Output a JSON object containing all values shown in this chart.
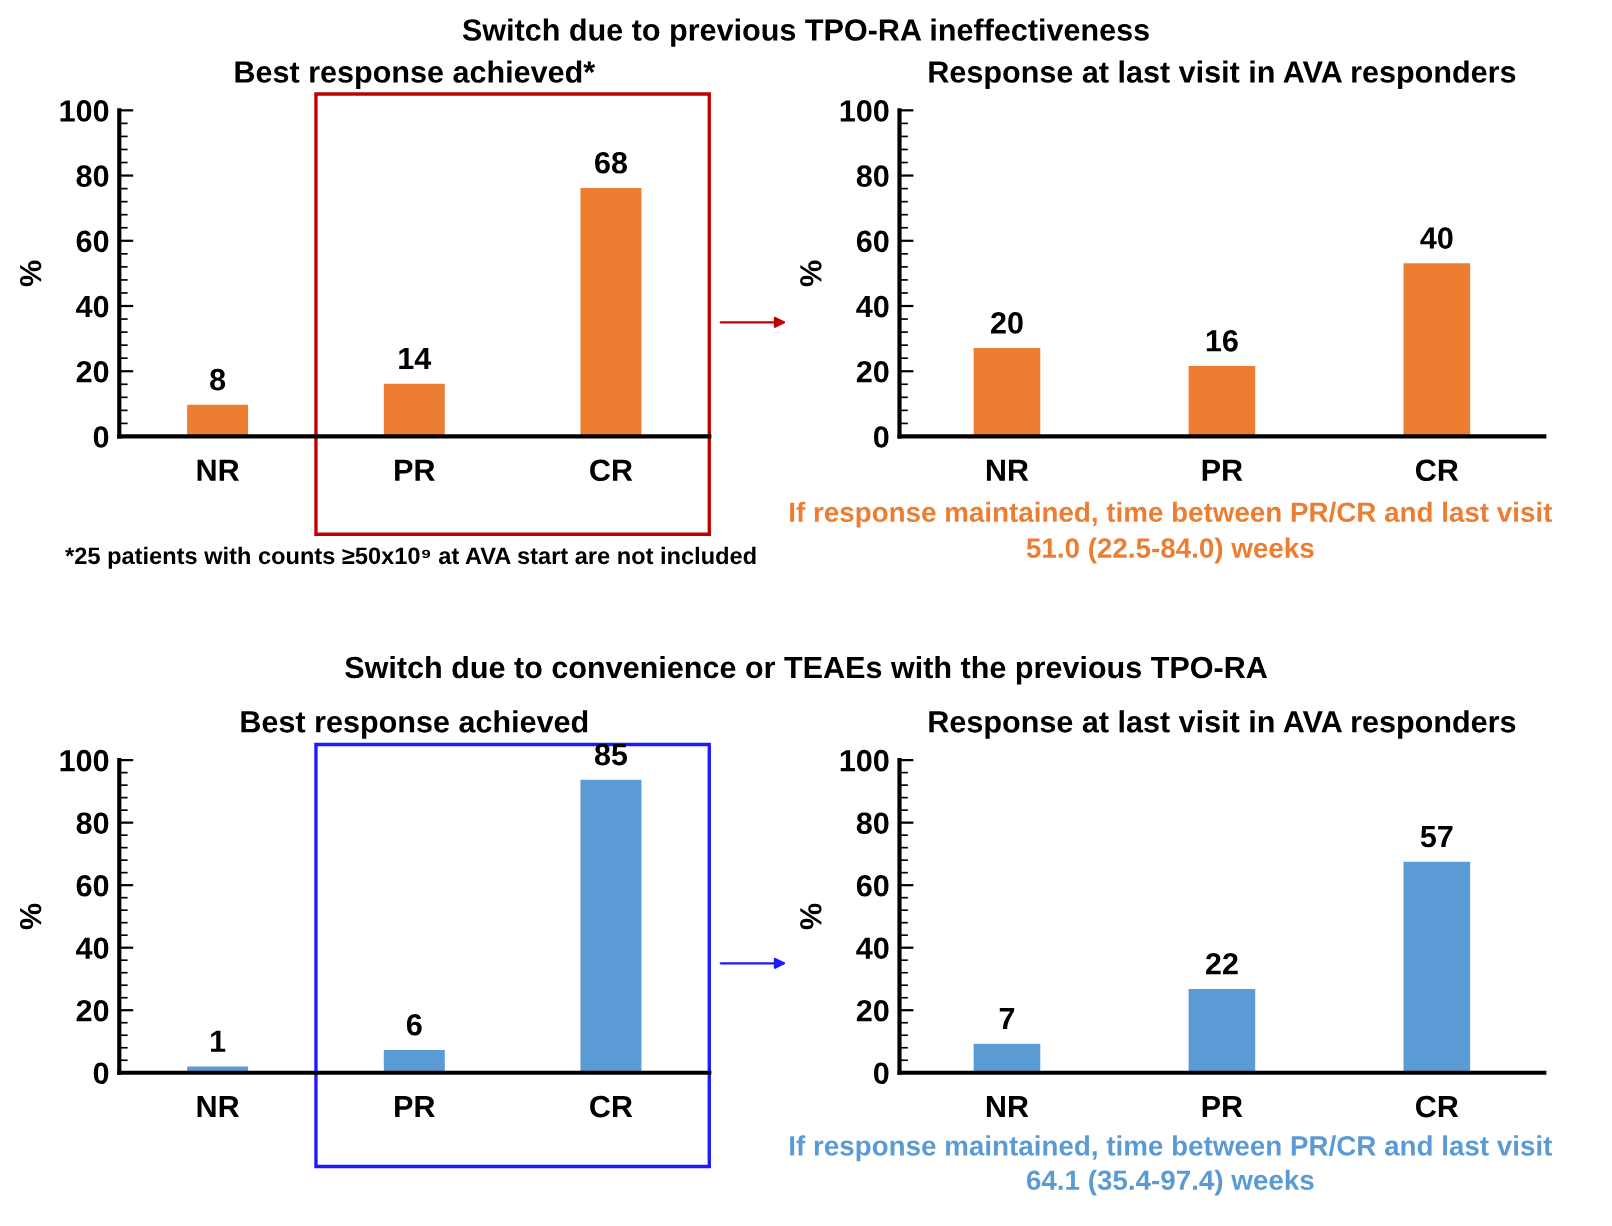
{
  "chart_data": [
    {
      "type": "bar",
      "title": "Best response achieved*",
      "ylabel": "%",
      "categories": [
        "NR",
        "PR",
        "CR"
      ],
      "series": [
        {
          "color": "#ed7d31",
          "values": [
            9.7,
            16.2,
            76.2
          ]
        }
      ],
      "value_labels": [
        "8",
        "14",
        "68"
      ],
      "ylim": [
        0,
        100
      ],
      "yticks": [
        0,
        20,
        40,
        60,
        80,
        100
      ],
      "grid": false,
      "legend": false,
      "annotations": [
        "Switch due to previous TPO-RA ineffectiveness",
        "*25 patients with counts ≥50x10⁹ at AVA start are not included"
      ]
    },
    {
      "type": "bar",
      "title": "Response at last visit in AVA responders",
      "ylabel": "%",
      "categories": [
        "NR",
        "PR",
        "CR"
      ],
      "series": [
        {
          "color": "#ed7d31",
          "values": [
            27.1,
            21.6,
            53.1
          ]
        }
      ],
      "value_labels": [
        "20",
        "16",
        "40"
      ],
      "ylim": [
        0,
        100
      ],
      "yticks": [
        0,
        20,
        40,
        60,
        80,
        100
      ],
      "grid": false,
      "legend": false,
      "annotations": [
        "If response maintained, time between PR/CR and last visit",
        "51.0 (22.5-84.0) weeks"
      ]
    },
    {
      "type": "bar",
      "title": "Best response achieved",
      "ylabel": "%",
      "categories": [
        "NR",
        "PR",
        "CR"
      ],
      "series": [
        {
          "color": "#5b9bd5",
          "values": [
            2.0,
            7.3,
            93.7
          ]
        }
      ],
      "value_labels": [
        "1",
        "6",
        "85"
      ],
      "ylim": [
        0,
        100
      ],
      "yticks": [
        0,
        20,
        40,
        60,
        80,
        100
      ],
      "grid": false,
      "legend": false,
      "annotations": [
        "Switch due to convenience or TEAEs with the previous TPO-RA"
      ]
    },
    {
      "type": "bar",
      "title": "Response at last visit in AVA responders",
      "ylabel": "%",
      "categories": [
        "NR",
        "PR",
        "CR"
      ],
      "series": [
        {
          "color": "#5b9bd5",
          "values": [
            9.3,
            26.8,
            67.5
          ]
        }
      ],
      "value_labels": [
        "7",
        "22",
        "57"
      ],
      "ylim": [
        0,
        100
      ],
      "yticks": [
        0,
        20,
        40,
        60,
        80,
        100
      ],
      "grid": false,
      "legend": false,
      "annotations": [
        "If response maintained, time between PR/CR and last visit",
        "64.1 (35.4-97.4) weeks"
      ]
    }
  ]
}
